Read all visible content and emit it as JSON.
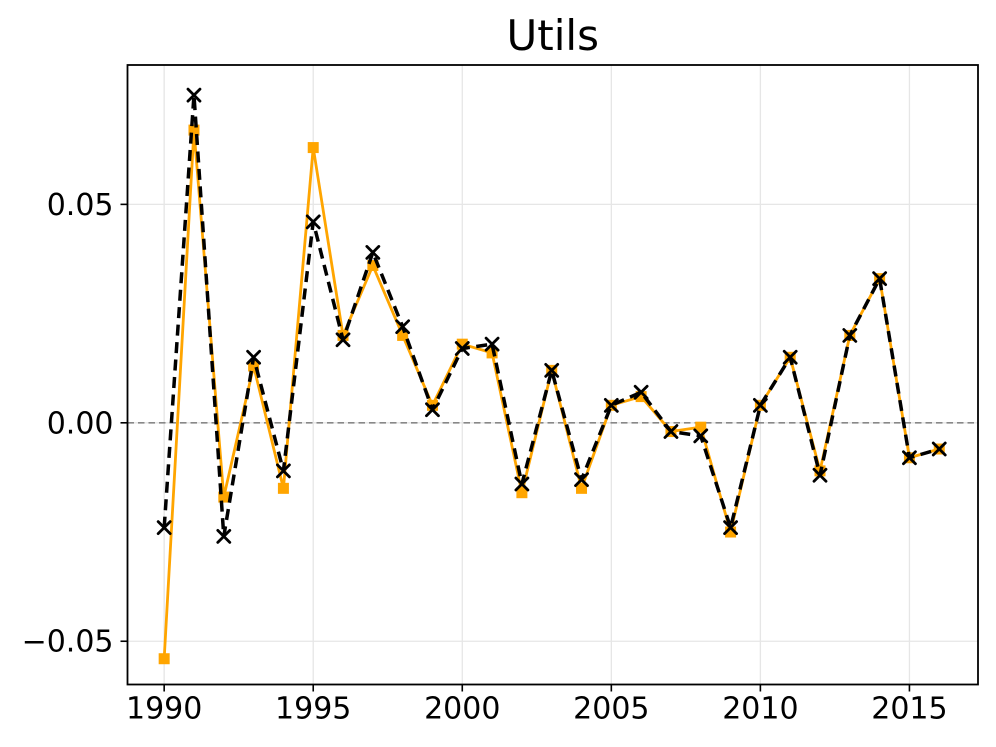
{
  "chart_data": {
    "type": "line",
    "title": "Utils",
    "xlabel": "",
    "ylabel": "",
    "grid": true,
    "legend_position": "none",
    "background_color": "#ffffff",
    "gridline_color": "#e6e6e6",
    "spine_color": "#000000",
    "xlim": [
      1988.77,
      2017.3
    ],
    "ylim": [
      -0.0599,
      0.0819
    ],
    "x": [
      1990,
      1991,
      1992,
      1993,
      1994,
      1995,
      1996,
      1997,
      1998,
      1999,
      2000,
      2001,
      2002,
      2003,
      2004,
      2005,
      2006,
      2007,
      2008,
      2009,
      2010,
      2011,
      2012,
      2013,
      2014,
      2015,
      2016
    ],
    "series": [
      {
        "name": "utils-solid-orange",
        "color": "#FFA500",
        "line_style": "solid",
        "line_width": 2.8,
        "marker": "square",
        "values": [
          -0.054,
          0.067,
          -0.017,
          0.013,
          -0.015,
          0.063,
          0.02,
          0.036,
          0.02,
          0.004,
          0.018,
          0.016,
          -0.016,
          0.012,
          -0.015,
          0.004,
          0.006,
          -0.002,
          -0.001,
          -0.025,
          0.004,
          0.015,
          -0.011,
          0.02,
          0.033,
          -0.008,
          -0.006
        ]
      },
      {
        "name": "utils-dashed-black",
        "color": "#000000",
        "line_style": "dashed",
        "line_width": 3.5,
        "marker": "x",
        "values": [
          -0.024,
          0.075,
          -0.026,
          0.015,
          -0.011,
          0.046,
          0.019,
          0.039,
          0.022,
          0.003,
          0.017,
          0.018,
          -0.014,
          0.012,
          -0.013,
          0.004,
          0.007,
          -0.002,
          -0.003,
          -0.024,
          0.004,
          0.015,
          -0.012,
          0.02,
          0.033,
          -0.008,
          -0.006
        ]
      }
    ],
    "xticks": {
      "values": [
        1990,
        1995,
        2000,
        2005,
        2010,
        2015
      ],
      "labels": [
        "1990",
        "1995",
        "2000",
        "2005",
        "2010",
        "2015"
      ]
    },
    "yticks": {
      "values": [
        -0.05,
        0.0,
        0.05
      ],
      "labels": [
        "−0.05",
        "0.00",
        "0.05"
      ]
    },
    "zero_line": {
      "show": true,
      "color": "#888888",
      "style": "dashed"
    }
  }
}
